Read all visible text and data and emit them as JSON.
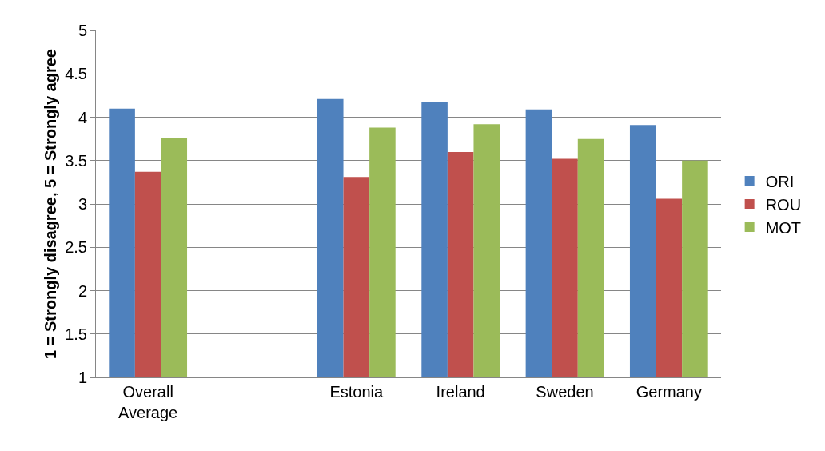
{
  "chart_data": {
    "type": "bar",
    "ylabel": "1 = Strongly disagree, 5 = Strongly agree",
    "categories": [
      "Overall Average",
      null,
      "Estonia",
      "Ireland",
      "Sweden",
      "Germany"
    ],
    "series": [
      {
        "name": "ORI",
        "color": "#4f81bd",
        "values": [
          4.1,
          null,
          4.21,
          4.18,
          4.09,
          3.91
        ]
      },
      {
        "name": "ROU",
        "color": "#c0504d",
        "values": [
          3.37,
          null,
          3.31,
          3.6,
          3.52,
          3.06
        ]
      },
      {
        "name": "MOT",
        "color": "#9bbb59",
        "values": [
          3.76,
          null,
          3.88,
          3.92,
          3.75,
          3.5
        ]
      }
    ],
    "ylim": [
      1,
      5
    ],
    "yticks": [
      1,
      1.5,
      2,
      2.5,
      3,
      3.5,
      4,
      4.5,
      5
    ],
    "grid": "y",
    "legend": "right"
  }
}
